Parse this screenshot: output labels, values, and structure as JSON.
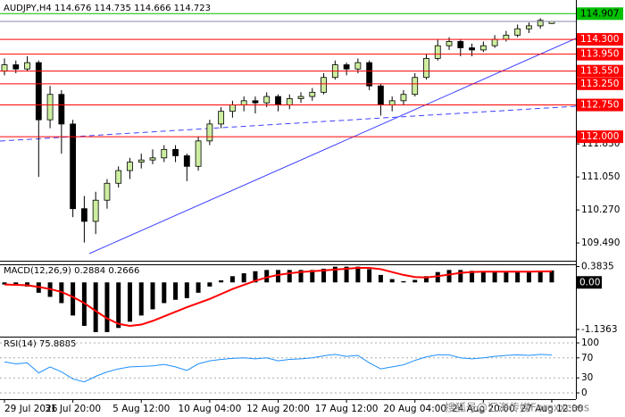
{
  "chart_data": [
    {
      "type": "candlestick",
      "title": "AUDJPY,H4",
      "quote": [
        114.676,
        114.735,
        114.666,
        114.723
      ],
      "categories": [
        "29 Jul 2026",
        null,
        null,
        null,
        null,
        null,
        "31 Jul 20:00",
        null,
        null,
        null,
        null,
        null,
        "5 Aug 12:00",
        null,
        null,
        null,
        null,
        null,
        "10 Aug 04:00",
        null,
        null,
        null,
        null,
        null,
        "12 Aug 20:00",
        null,
        null,
        null,
        null,
        null,
        "17 Aug 12:00",
        null,
        null,
        null,
        null,
        null,
        "20 Aug 04:00",
        null,
        null,
        null,
        null,
        null,
        "24 Aug 20:00",
        null,
        null,
        null,
        null,
        null,
        "27 Aug 12:00"
      ],
      "ohlc": [
        [
          113.55,
          113.85,
          113.45,
          113.7
        ],
        [
          113.7,
          113.8,
          113.5,
          113.6
        ],
        [
          113.6,
          113.9,
          113.55,
          113.75
        ],
        [
          113.75,
          113.8,
          111.05,
          112.4
        ],
        [
          112.4,
          113.2,
          112.2,
          113.0
        ],
        [
          113.0,
          113.1,
          111.6,
          112.3
        ],
        [
          112.3,
          112.4,
          110.1,
          110.3
        ],
        [
          110.3,
          110.6,
          109.5,
          110.0
        ],
        [
          110.0,
          110.7,
          109.7,
          110.5
        ],
        [
          110.5,
          111.0,
          110.3,
          110.9
        ],
        [
          110.9,
          111.3,
          110.8,
          111.2
        ],
        [
          111.2,
          111.5,
          111.0,
          111.4
        ],
        [
          111.4,
          111.6,
          111.25,
          111.45
        ],
        [
          111.45,
          111.7,
          111.35,
          111.5
        ],
        [
          111.5,
          111.8,
          111.4,
          111.7
        ],
        [
          111.7,
          111.8,
          111.4,
          111.55
        ],
        [
          111.55,
          111.6,
          110.95,
          111.3
        ],
        [
          111.3,
          112.0,
          111.2,
          111.9
        ],
        [
          111.9,
          112.4,
          111.8,
          112.3
        ],
        [
          112.3,
          112.7,
          112.2,
          112.6
        ],
        [
          112.6,
          112.85,
          112.45,
          112.75
        ],
        [
          112.75,
          112.95,
          112.6,
          112.85
        ],
        [
          112.85,
          112.95,
          112.55,
          112.8
        ],
        [
          112.8,
          113.05,
          112.7,
          112.95
        ],
        [
          112.95,
          113.0,
          112.6,
          112.75
        ],
        [
          112.75,
          113.0,
          112.65,
          112.9
        ],
        [
          112.9,
          113.05,
          112.8,
          112.95
        ],
        [
          112.95,
          113.15,
          112.85,
          113.05
        ],
        [
          113.05,
          113.5,
          113.0,
          113.4
        ],
        [
          113.4,
          113.8,
          113.35,
          113.7
        ],
        [
          113.7,
          113.75,
          113.45,
          113.6
        ],
        [
          113.6,
          113.85,
          113.5,
          113.75
        ],
        [
          113.75,
          113.8,
          113.1,
          113.2
        ],
        [
          113.2,
          113.25,
          112.5,
          112.75
        ],
        [
          112.75,
          112.95,
          112.6,
          112.85
        ],
        [
          112.85,
          113.1,
          112.75,
          113.0
        ],
        [
          113.0,
          113.5,
          112.95,
          113.4
        ],
        [
          113.4,
          113.95,
          113.35,
          113.85
        ],
        [
          113.85,
          114.3,
          113.8,
          114.15
        ],
        [
          114.15,
          114.35,
          114.05,
          114.25
        ],
        [
          114.25,
          114.3,
          113.9,
          114.1
        ],
        [
          114.1,
          114.2,
          113.9,
          114.05
        ],
        [
          114.05,
          114.25,
          114.0,
          114.15
        ],
        [
          114.15,
          114.4,
          114.1,
          114.3
        ],
        [
          114.3,
          114.5,
          114.25,
          114.4
        ],
        [
          114.4,
          114.65,
          114.35,
          114.55
        ],
        [
          114.55,
          114.7,
          114.45,
          114.62
        ],
        [
          114.62,
          114.8,
          114.55,
          114.75
        ],
        [
          114.676,
          114.735,
          114.666,
          114.723
        ]
      ],
      "bull_color": "#cdeea0",
      "bear_color": "#000000",
      "ylim": [
        109.07,
        115.23
      ],
      "yticks": [
        {
          "value": 109.49,
          "label": "109.490"
        },
        {
          "value": 110.27,
          "label": "110.270"
        },
        {
          "value": 111.05,
          "label": "111.050"
        },
        {
          "value": 111.83,
          "label": "111.830"
        }
      ],
      "levels": [
        {
          "value": 114.907,
          "color": "#00c000"
        },
        {
          "value": 114.3,
          "label": "114.300",
          "color": "#ff0000"
        },
        {
          "value": 113.95,
          "label": "113.950",
          "color": "#ff0000"
        },
        {
          "value": 113.55,
          "label": "113.550",
          "color": "#ff0000"
        },
        {
          "value": 113.25,
          "label": "113.250",
          "color": "#ff0000"
        },
        {
          "value": 112.75,
          "label": "112.750",
          "color": "#ff0000"
        },
        {
          "value": 112.0,
          "label": "112.000",
          "color": "#ff0000"
        }
      ]
    },
    {
      "type": "bar",
      "title": "MACD(12,26,9)",
      "readout": [
        0.2884,
        0.2666
      ],
      "values": [
        -0.05,
        -0.08,
        -0.1,
        -0.25,
        -0.35,
        -0.5,
        -0.8,
        -1.05,
        -1.2,
        -1.2,
        -1.1,
        -0.95,
        -0.8,
        -0.65,
        -0.5,
        -0.42,
        -0.38,
        -0.25,
        -0.1,
        0.05,
        0.15,
        0.22,
        0.27,
        0.3,
        0.3,
        0.3,
        0.3,
        0.3,
        0.33,
        0.38,
        0.38,
        0.38,
        0.32,
        0.18,
        0.08,
        0.03,
        0.06,
        0.15,
        0.25,
        0.3,
        0.3,
        0.28,
        0.27,
        0.27,
        0.26,
        0.26,
        0.27,
        0.28,
        0.2884
      ],
      "signal": [
        -0.05,
        -0.06,
        -0.07,
        -0.11,
        -0.16,
        -0.23,
        -0.35,
        -0.5,
        -0.69,
        -0.87,
        -1.0,
        -1.05,
        -1.02,
        -0.93,
        -0.82,
        -0.71,
        -0.6,
        -0.5,
        -0.4,
        -0.28,
        -0.16,
        -0.06,
        0.04,
        0.12,
        0.18,
        0.22,
        0.25,
        0.27,
        0.29,
        0.31,
        0.33,
        0.35,
        0.35,
        0.32,
        0.25,
        0.18,
        0.13,
        0.12,
        0.15,
        0.19,
        0.23,
        0.25,
        0.26,
        0.26,
        0.26,
        0.26,
        0.26,
        0.265,
        0.2666
      ],
      "color": "#000000",
      "signal_color": "#ff0000",
      "ylim": [
        -1.31,
        0.437
      ],
      "yticks": [
        0.3835,
        {
          "value": 0,
          "label": "0.00"
        },
        -1.1363
      ]
    },
    {
      "type": "line",
      "title": "RSI(14)",
      "readout": 75.8885,
      "values": [
        62,
        58,
        60,
        40,
        52,
        42,
        28,
        22,
        33,
        42,
        48,
        52,
        53,
        54,
        57,
        52,
        45,
        58,
        64,
        67,
        69,
        70,
        68,
        70,
        64,
        67,
        68,
        70,
        74,
        77,
        73,
        75,
        60,
        48,
        52,
        56,
        65,
        72,
        76,
        76,
        70,
        68,
        70,
        73,
        75,
        76,
        75,
        77,
        75.8885
      ],
      "color": "#1e90ff",
      "ylim": [
        -12.5,
        110.7
      ],
      "yticks": [
        0,
        30,
        70,
        100
      ]
    }
  ],
  "watermark": "搜狐号@汇海传媒Forexxcess"
}
